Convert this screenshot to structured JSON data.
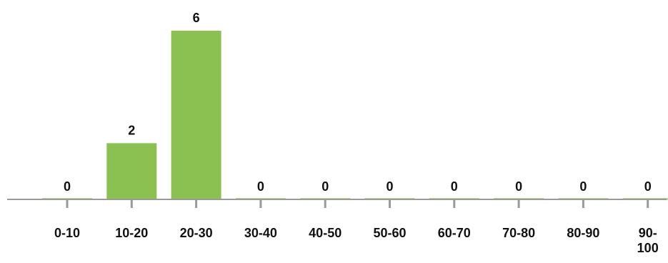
{
  "chart_data": {
    "type": "bar",
    "title": "",
    "xlabel": "",
    "ylabel": "",
    "categories": [
      "0-10",
      "10-20",
      "20-30",
      "30-40",
      "40-50",
      "50-60",
      "60-70",
      "70-80",
      "80-90",
      "90-\n100"
    ],
    "values": [
      0,
      2,
      6,
      0,
      0,
      0,
      0,
      0,
      0,
      0
    ],
    "ylim": [
      0,
      6
    ],
    "grid": false,
    "legend": "none",
    "colors": {
      "bar": "#8bc150",
      "axis": "#9a9a9a",
      "baseline_highlight": "#b9d995",
      "text": "#111111"
    }
  }
}
